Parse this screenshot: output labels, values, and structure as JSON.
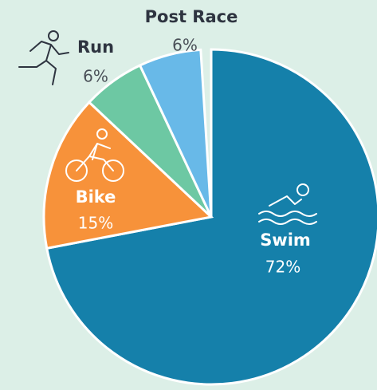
{
  "chart_data": {
    "type": "pie",
    "categories": [
      "Swim",
      "Bike",
      "Run",
      "Post Race"
    ],
    "values": [
      72,
      15,
      6,
      6
    ],
    "value_labels": [
      "72%",
      "15%",
      "6%",
      "6%"
    ],
    "colors": [
      "#1580aa",
      "#f7923a",
      "#6dc8a3",
      "#68b9e8"
    ]
  }
}
